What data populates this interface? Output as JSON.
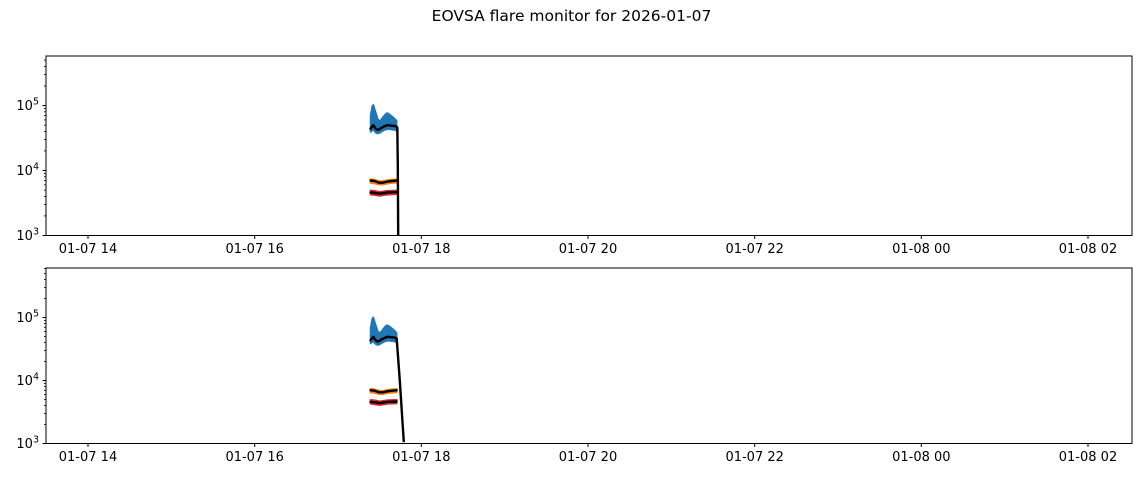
{
  "title": "EOVSA flare monitor for 2026-01-07",
  "background_color": "#ffffff",
  "axis_color": "#000000",
  "chart_data": [
    {
      "type": "area",
      "panel": "top",
      "x_unit": "UT time (MM-DD HH), hours since 2026-01-07 00:00",
      "y_unit": "flux (log scale)",
      "xlim": [
        13.496,
        26.528
      ],
      "ylim": [
        1000,
        578000
      ],
      "ylog_lim": [
        3,
        5.762
      ],
      "grid": false,
      "legend": null,
      "x_ticks": [
        {
          "value": 14,
          "label": "01-07 14"
        },
        {
          "value": 16,
          "label": "01-07 16"
        },
        {
          "value": 18,
          "label": "01-07 18"
        },
        {
          "value": 20,
          "label": "01-07 20"
        },
        {
          "value": 22,
          "label": "01-07 22"
        },
        {
          "value": 24,
          "label": "01-08 00"
        },
        {
          "value": 26,
          "label": "01-08 02"
        }
      ],
      "y_ticks": [
        {
          "value": 100000,
          "label": "10^5"
        },
        {
          "value": 10000,
          "label": "10^4"
        },
        {
          "value": 1000,
          "label": "10^3"
        }
      ],
      "point_format": [
        "t_hours",
        "hi",
        "median",
        "lo"
      ],
      "series": [
        {
          "name": "high-flux-envelope",
          "kind": "band",
          "color": "#1f77b4",
          "median_color": "#000000",
          "points": [
            [
              17.39,
              70000,
              44000,
              39000
            ],
            [
              17.41,
              98000,
              48000,
              41000
            ],
            [
              17.425,
              103000,
              50000,
              42000
            ],
            [
              17.44,
              88000,
              46000,
              39500
            ],
            [
              17.46,
              74000,
              43000,
              37500
            ],
            [
              17.48,
              61000,
              42000,
              37000
            ],
            [
              17.505,
              58000,
              44000,
              38000
            ],
            [
              17.53,
              64000,
              46000,
              40000
            ],
            [
              17.56,
              72000,
              48000,
              42000
            ],
            [
              17.59,
              77000,
              50000,
              43000
            ],
            [
              17.62,
              73000,
              49500,
              43000
            ],
            [
              17.65,
              68000,
              49000,
              42500
            ],
            [
              17.68,
              63000,
              48500,
              42000
            ],
            [
              17.705,
              58000,
              47000,
              40500
            ]
          ]
        },
        {
          "name": "mid-flux-envelope",
          "kind": "band",
          "color": "#ff7f0e",
          "median_color": "#000000",
          "points": [
            [
              17.39,
              7400,
              7000,
              6400
            ],
            [
              17.44,
              7250,
              6900,
              6300
            ],
            [
              17.49,
              6950,
              6500,
              6050
            ],
            [
              17.54,
              6900,
              6500,
              6050
            ],
            [
              17.59,
              7150,
              6750,
              6250
            ],
            [
              17.65,
              7300,
              6900,
              6400
            ],
            [
              17.705,
              7350,
              7000,
              6450
            ]
          ]
        },
        {
          "name": "low-flux-envelope",
          "kind": "band",
          "color": "#d62728",
          "median_color": "#000000",
          "points": [
            [
              17.39,
              4950,
              4600,
              4250
            ],
            [
              17.45,
              4850,
              4500,
              4150
            ],
            [
              17.5,
              4700,
              4400,
              4050
            ],
            [
              17.55,
              4800,
              4500,
              4150
            ],
            [
              17.6,
              4900,
              4600,
              4250
            ],
            [
              17.705,
              4950,
              4650,
              4300
            ]
          ]
        },
        {
          "name": "end-drop-line",
          "kind": "line",
          "color": "#000000",
          "points": [
            [
              17.712,
              47000
            ],
            [
              17.718,
              12000
            ],
            [
              17.722,
              1000
            ]
          ]
        }
      ]
    },
    {
      "type": "area",
      "panel": "bottom",
      "x_unit": "UT time (MM-DD HH), hours since 2026-01-07 00:00",
      "y_unit": "flux (log scale)",
      "xlim": [
        13.496,
        26.528
      ],
      "ylim": [
        1000,
        611000
      ],
      "ylog_lim": [
        3,
        5.786
      ],
      "grid": false,
      "legend": null,
      "x_ticks": [
        {
          "value": 14,
          "label": "01-07 14"
        },
        {
          "value": 16,
          "label": "01-07 16"
        },
        {
          "value": 18,
          "label": "01-07 18"
        },
        {
          "value": 20,
          "label": "01-07 20"
        },
        {
          "value": 22,
          "label": "01-07 22"
        },
        {
          "value": 24,
          "label": "01-08 00"
        },
        {
          "value": 26,
          "label": "01-08 02"
        }
      ],
      "y_ticks": [
        {
          "value": 100000,
          "label": "10^5"
        },
        {
          "value": 10000,
          "label": "10^4"
        },
        {
          "value": 1000,
          "label": "10^3"
        }
      ],
      "point_format": [
        "t_hours",
        "hi",
        "median",
        "lo"
      ],
      "series": [
        {
          "name": "high-flux-envelope",
          "kind": "band",
          "color": "#1f77b4",
          "median_color": "#000000",
          "points": [
            [
              17.39,
              68000,
              43500,
              38500
            ],
            [
              17.41,
              96000,
              47500,
              40500
            ],
            [
              17.425,
              101000,
              49500,
              41500
            ],
            [
              17.44,
              86000,
              45500,
              39000
            ],
            [
              17.46,
              72000,
              42500,
              37000
            ],
            [
              17.48,
              60000,
              41500,
              36500
            ],
            [
              17.505,
              57000,
              43500,
              37500
            ],
            [
              17.53,
              63000,
              45500,
              39500
            ],
            [
              17.56,
              71000,
              47500,
              41500
            ],
            [
              17.59,
              76000,
              49500,
              42500
            ],
            [
              17.62,
              72000,
              49000,
              42500
            ],
            [
              17.65,
              67000,
              48500,
              42000
            ],
            [
              17.68,
              62000,
              48000,
              41500
            ],
            [
              17.705,
              57000,
              46500,
              40000
            ]
          ]
        },
        {
          "name": "mid-flux-envelope",
          "kind": "band",
          "color": "#ff7f0e",
          "median_color": "#000000",
          "points": [
            [
              17.39,
              7400,
              7000,
              6400
            ],
            [
              17.44,
              7250,
              6900,
              6300
            ],
            [
              17.49,
              6950,
              6500,
              6050
            ],
            [
              17.54,
              6900,
              6500,
              6050
            ],
            [
              17.59,
              7150,
              6750,
              6250
            ],
            [
              17.65,
              7300,
              6900,
              6400
            ],
            [
              17.705,
              7350,
              7000,
              6450
            ]
          ]
        },
        {
          "name": "low-flux-envelope",
          "kind": "band",
          "color": "#d62728",
          "median_color": "#000000",
          "points": [
            [
              17.39,
              4950,
              4600,
              4250
            ],
            [
              17.45,
              4850,
              4500,
              4150
            ],
            [
              17.5,
              4700,
              4400,
              4050
            ],
            [
              17.55,
              4800,
              4500,
              4150
            ],
            [
              17.6,
              4900,
              4600,
              4250
            ],
            [
              17.705,
              4950,
              4650,
              4300
            ]
          ]
        },
        {
          "name": "end-drop-line",
          "kind": "line",
          "color": "#000000",
          "points": [
            [
              17.705,
              46000
            ],
            [
              17.742,
              10000
            ],
            [
              17.79,
              1050
            ]
          ]
        }
      ]
    }
  ]
}
